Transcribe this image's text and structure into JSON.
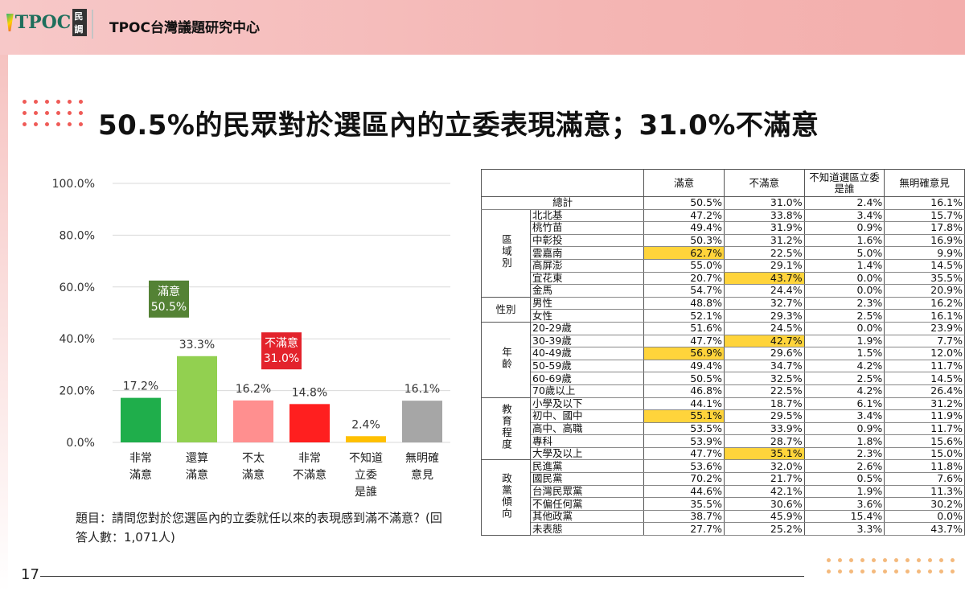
{
  "header": {
    "logo_text": "TPOC",
    "logo_tag": "民調",
    "title": "TPOC台灣議題研究中心"
  },
  "page": {
    "title": "50.5%的民眾對於選區內的立委表現滿意；31.0%不滿意",
    "question": "題目：請問您對於您選區內的立委就任以來的表現感到滿不滿意？(回答人數：1,071人)",
    "page_number": "17"
  },
  "colors": {
    "header_bg": "#f4b6b4",
    "accent_red": "#ef5b57",
    "highlight": "#ffd43b"
  },
  "chart_data": {
    "type": "bar",
    "categories": [
      "非常\n滿意",
      "還算\n滿意",
      "不太\n滿意",
      "非常\n不滿意",
      "不知道\n立委\n是誰",
      "無明確\n意見"
    ],
    "values": [
      17.2,
      33.3,
      16.2,
      14.8,
      2.4,
      16.1
    ],
    "value_labels": [
      "17.2%",
      "33.3%",
      "16.2%",
      "14.8%",
      "2.4%",
      "16.1%"
    ],
    "bar_colors": [
      "#1fae4b",
      "#92d050",
      "#ff8f8f",
      "#ff1f1f",
      "#ffc000",
      "#a6a6a6"
    ],
    "yticks": [
      "0.0%",
      "20.0%",
      "40.0%",
      "60.0%",
      "80.0%",
      "100.0%"
    ],
    "ylim": [
      0,
      100
    ],
    "grid": true,
    "annotations": [
      {
        "lines": [
          "滿意",
          "50.5%"
        ],
        "color": "#548235",
        "y": 60
      },
      {
        "lines": [
          "不滿意",
          "31.0%"
        ],
        "color": "#e3232c",
        "y": 40
      }
    ]
  },
  "table": {
    "headers": [
      "",
      "滿意",
      "不滿意",
      "不知道選區立委是誰",
      "無明確意見"
    ],
    "total": {
      "label": "總計",
      "values": [
        "50.5%",
        "31.0%",
        "2.4%",
        "16.1%"
      ]
    },
    "groups": [
      {
        "name": "區域別",
        "rows": [
          {
            "label": "北北基",
            "values": [
              "47.2%",
              "33.8%",
              "3.4%",
              "15.7%"
            ],
            "hl": []
          },
          {
            "label": "桃竹苗",
            "values": [
              "49.4%",
              "31.9%",
              "0.9%",
              "17.8%"
            ],
            "hl": []
          },
          {
            "label": "中彰投",
            "values": [
              "50.3%",
              "31.2%",
              "1.6%",
              "16.9%"
            ],
            "hl": []
          },
          {
            "label": "雲嘉南",
            "values": [
              "62.7%",
              "22.5%",
              "5.0%",
              "9.9%"
            ],
            "hl": [
              0
            ]
          },
          {
            "label": "高屏澎",
            "values": [
              "55.0%",
              "29.1%",
              "1.4%",
              "14.5%"
            ],
            "hl": []
          },
          {
            "label": "宜花東",
            "values": [
              "20.7%",
              "43.7%",
              "0.0%",
              "35.5%"
            ],
            "hl": [
              1
            ]
          },
          {
            "label": "金馬",
            "values": [
              "54.7%",
              "24.4%",
              "0.0%",
              "20.9%"
            ],
            "hl": []
          }
        ]
      },
      {
        "name": "性別",
        "rows": [
          {
            "label": "男性",
            "values": [
              "48.8%",
              "32.7%",
              "2.3%",
              "16.2%"
            ],
            "hl": []
          },
          {
            "label": "女性",
            "values": [
              "52.1%",
              "29.3%",
              "2.5%",
              "16.1%"
            ],
            "hl": []
          }
        ]
      },
      {
        "name": "年齡",
        "rows": [
          {
            "label": "20-29歲",
            "values": [
              "51.6%",
              "24.5%",
              "0.0%",
              "23.9%"
            ],
            "hl": []
          },
          {
            "label": "30-39歲",
            "values": [
              "47.7%",
              "42.7%",
              "1.9%",
              "7.7%"
            ],
            "hl": [
              1
            ]
          },
          {
            "label": "40-49歲",
            "values": [
              "56.9%",
              "29.6%",
              "1.5%",
              "12.0%"
            ],
            "hl": [
              0
            ]
          },
          {
            "label": "50-59歲",
            "values": [
              "49.4%",
              "34.7%",
              "4.2%",
              "11.7%"
            ],
            "hl": []
          },
          {
            "label": "60-69歲",
            "values": [
              "50.5%",
              "32.5%",
              "2.5%",
              "14.5%"
            ],
            "hl": []
          },
          {
            "label": "70歲以上",
            "values": [
              "46.8%",
              "22.5%",
              "4.2%",
              "26.4%"
            ],
            "hl": []
          }
        ]
      },
      {
        "name": "教育程度",
        "rows": [
          {
            "label": "小學及以下",
            "values": [
              "44.1%",
              "18.7%",
              "6.1%",
              "31.2%"
            ],
            "hl": []
          },
          {
            "label": "初中、國中",
            "values": [
              "55.1%",
              "29.5%",
              "3.4%",
              "11.9%"
            ],
            "hl": [
              0
            ]
          },
          {
            "label": "高中、高職",
            "values": [
              "53.5%",
              "33.9%",
              "0.9%",
              "11.7%"
            ],
            "hl": []
          },
          {
            "label": "專科",
            "values": [
              "53.9%",
              "28.7%",
              "1.8%",
              "15.6%"
            ],
            "hl": []
          },
          {
            "label": "大學及以上",
            "values": [
              "47.7%",
              "35.1%",
              "2.3%",
              "15.0%"
            ],
            "hl": [
              1
            ]
          }
        ]
      },
      {
        "name": "政黨傾向",
        "rows": [
          {
            "label": "民進黨",
            "values": [
              "53.6%",
              "32.0%",
              "2.6%",
              "11.8%"
            ],
            "hl": []
          },
          {
            "label": "國民黨",
            "values": [
              "70.2%",
              "21.7%",
              "0.5%",
              "7.6%"
            ],
            "hl": []
          },
          {
            "label": "台灣民眾黨",
            "values": [
              "44.6%",
              "42.1%",
              "1.9%",
              "11.3%"
            ],
            "hl": []
          },
          {
            "label": "不偏任何黨",
            "values": [
              "35.5%",
              "30.6%",
              "3.6%",
              "30.2%"
            ],
            "hl": []
          },
          {
            "label": "其他政黨",
            "values": [
              "38.7%",
              "45.9%",
              "15.4%",
              "0.0%"
            ],
            "hl": []
          },
          {
            "label": "未表態",
            "values": [
              "27.7%",
              "25.2%",
              "3.3%",
              "43.7%"
            ],
            "hl": []
          }
        ]
      }
    ]
  }
}
